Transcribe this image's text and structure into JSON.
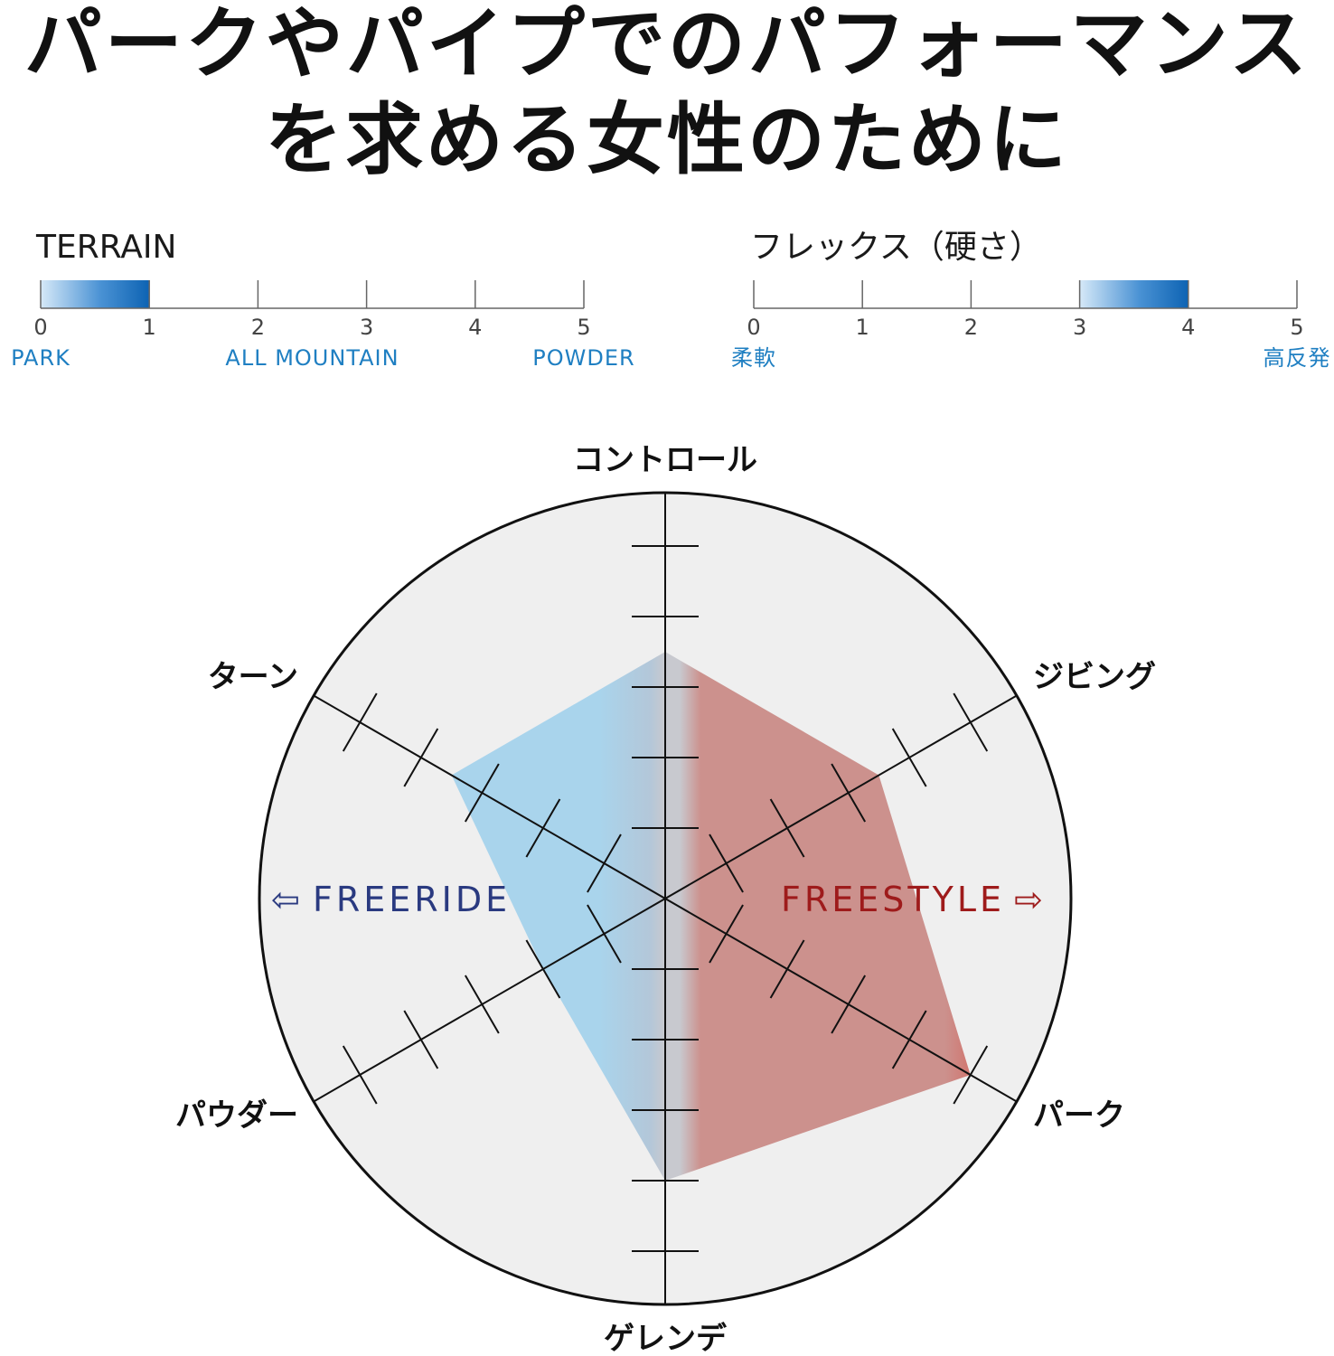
{
  "title": {
    "line1": "パークやパイプでのパフォーマンス",
    "line2": "を求める女性のために"
  },
  "terrain": {
    "label": "TERRAIN",
    "range": [
      0,
      5
    ],
    "selected": [
      0,
      1
    ],
    "ticks": [
      "0",
      "1",
      "2",
      "3",
      "4",
      "5"
    ],
    "captions": [
      {
        "at": 0,
        "text": "PARK"
      },
      {
        "at": 2.5,
        "text": "ALL MOUNTAIN"
      },
      {
        "at": 5,
        "text": "POWDER"
      }
    ]
  },
  "flex": {
    "label": "フレックス（硬さ）",
    "range": [
      0,
      5
    ],
    "selected": [
      3,
      4
    ],
    "ticks": [
      "0",
      "1",
      "2",
      "3",
      "4",
      "5"
    ],
    "captions": [
      {
        "at": 0,
        "text": "柔軟"
      },
      {
        "at": 5,
        "text": "高反発"
      }
    ]
  },
  "colors": {
    "scale_bar": "#0d63b3",
    "scale_bar_light": "#d6e9f8",
    "freeride": "#2a3a80",
    "freestyle": "#9e1b1b",
    "freeride_fill": "#a9d4ec",
    "freestyle_fill": "#cc918d",
    "freestyle_peak": "#d9443a",
    "center_band": "#c8c9cf",
    "circle_bg": "#efefef"
  },
  "chart_data": {
    "type": "radar",
    "axes": [
      "コントロール",
      "ジビング",
      "パーク",
      "ゲレンデ",
      "パウダー",
      "ターン"
    ],
    "max": 5,
    "values": [
      3.5,
      3.5,
      5,
      4,
      2,
      3.5
    ],
    "style_labels": {
      "left": "FREERIDE",
      "right": "FREESTYLE"
    },
    "grid": false
  }
}
